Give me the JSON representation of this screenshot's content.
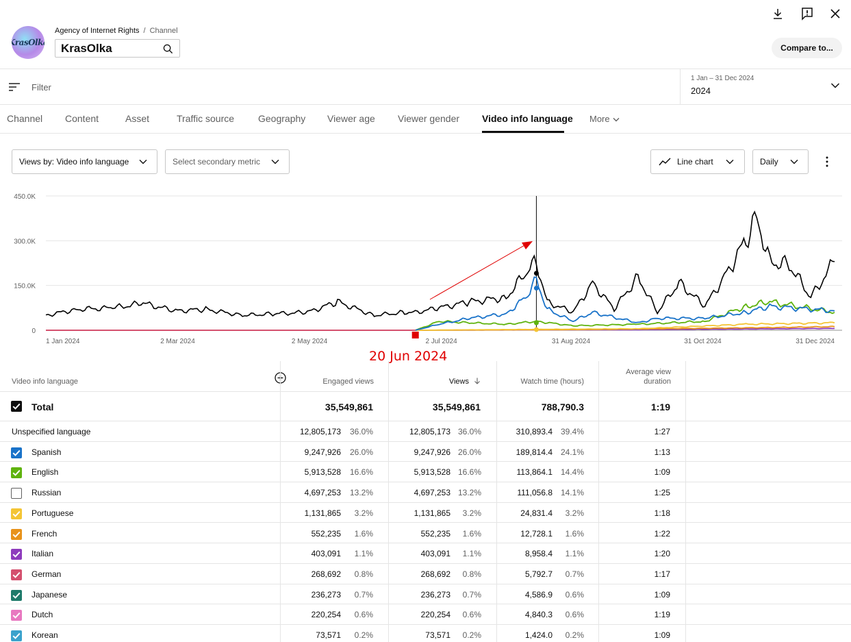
{
  "header": {
    "org": "Agency of Internet Rights",
    "separator": "/",
    "crumb_channel": "Channel",
    "channel_name": "KrasOlka",
    "avatar_text": "KrasOlka",
    "compare_label": "Compare to..."
  },
  "filter": {
    "placeholder": "Filter"
  },
  "date": {
    "range": "1 Jan – 31 Dec 2024",
    "year": "2024"
  },
  "tabs": [
    {
      "label": "Channel"
    },
    {
      "label": "Content"
    },
    {
      "label": "Asset"
    },
    {
      "label": "Traffic source"
    },
    {
      "label": "Geography"
    },
    {
      "label": "Viewer age"
    },
    {
      "label": "Viewer gender"
    },
    {
      "label": "Video info language"
    },
    {
      "label": "More"
    }
  ],
  "controls": {
    "views_by": "Views by: Video info language",
    "secondary": "Select secondary metric",
    "chart_type": "Line chart",
    "granularity": "Daily"
  },
  "annotation": {
    "date_label": "20 Jun 2024",
    "color": "#e00000"
  },
  "colors": {
    "total": "#000000",
    "spanish": "#1a73c9",
    "english": "#5fb30e",
    "russian": "#808080",
    "portuguese": "#f4c534",
    "french": "#e8921a",
    "italian": "#8e3bbd",
    "german": "#d4506e",
    "japanese": "#1e7a6a",
    "dutch": "#e878c0",
    "korean": "#3aa2cc"
  },
  "chart_data": {
    "type": "line",
    "xlabel": "",
    "ylabel": "",
    "ylim": [
      0,
      450000
    ],
    "yticks": [
      "450.0K",
      "300.0K",
      "150.0K",
      "0"
    ],
    "xticks": [
      "1 Jan 2024",
      "2 Mar 2024",
      "2 May 2024",
      "2 Jul 2024",
      "31 Aug 2024",
      "31 Oct 2024",
      "31 Dec 2024"
    ],
    "series": [
      {
        "name": "Total",
        "color": "#000000",
        "x": [
          "2024-01-01",
          "2024-01-15",
          "2024-02-01",
          "2024-02-15",
          "2024-03-01",
          "2024-03-15",
          "2024-04-01",
          "2024-04-15",
          "2024-05-01",
          "2024-05-15",
          "2024-06-01",
          "2024-06-15",
          "2024-06-20",
          "2024-07-01",
          "2024-07-15",
          "2024-08-01",
          "2024-08-10",
          "2024-08-15",
          "2024-08-20",
          "2024-09-01",
          "2024-09-10",
          "2024-09-20",
          "2024-10-01",
          "2024-10-10",
          "2024-10-20",
          "2024-11-01",
          "2024-11-10",
          "2024-11-20",
          "2024-11-25",
          "2024-12-01",
          "2024-12-10",
          "2024-12-20",
          "2024-12-31"
        ],
        "values": [
          50000,
          70000,
          75000,
          90000,
          65000,
          70000,
          50000,
          55000,
          60000,
          95000,
          50000,
          60000,
          60000,
          75000,
          95000,
          110000,
          190000,
          230000,
          95000,
          60000,
          160000,
          70000,
          180000,
          60000,
          160000,
          80000,
          180000,
          300000,
          380000,
          230000,
          220000,
          110000,
          230000
        ]
      },
      {
        "name": "Spanish",
        "color": "#1a73c9",
        "x": [
          "2024-06-20",
          "2024-07-01",
          "2024-07-15",
          "2024-08-01",
          "2024-08-10",
          "2024-08-15",
          "2024-08-20",
          "2024-09-01",
          "2024-09-10",
          "2024-10-01",
          "2024-10-10",
          "2024-11-01",
          "2024-11-20",
          "2024-12-01",
          "2024-12-31"
        ],
        "values": [
          0,
          20000,
          40000,
          55000,
          110000,
          170000,
          70000,
          30000,
          60000,
          25000,
          40000,
          40000,
          60000,
          80000,
          65000
        ]
      },
      {
        "name": "English",
        "color": "#5fb30e",
        "x": [
          "2024-06-20",
          "2024-07-01",
          "2024-07-15",
          "2024-08-01",
          "2024-08-15",
          "2024-09-01",
          "2024-10-01",
          "2024-11-01",
          "2024-11-20",
          "2024-12-01",
          "2024-12-31"
        ],
        "values": [
          0,
          30000,
          25000,
          20000,
          30000,
          15000,
          20000,
          30000,
          80000,
          95000,
          60000
        ]
      },
      {
        "name": "Portuguese",
        "color": "#f4c534",
        "x": [
          "2024-06-20",
          "2024-08-15",
          "2024-10-01",
          "2024-11-20",
          "2024-12-31"
        ],
        "values": [
          0,
          3000,
          5000,
          20000,
          25000
        ]
      },
      {
        "name": "French",
        "color": "#e8921a",
        "x": [
          "2024-06-20",
          "2024-09-01",
          "2024-11-20",
          "2024-12-31"
        ],
        "values": [
          0,
          2000,
          8000,
          12000
        ]
      },
      {
        "name": "Italian",
        "color": "#8e3bbd",
        "x": [
          "2024-06-20",
          "2024-10-01",
          "2024-12-31"
        ],
        "values": [
          0,
          2000,
          6000
        ]
      }
    ]
  },
  "table": {
    "headers": {
      "dimension": "Video info language",
      "engaged": "Engaged views",
      "views": "Views",
      "watch": "Watch time (hours)",
      "avg_line1": "Average view",
      "avg_line2": "duration"
    },
    "total": {
      "label": "Total",
      "engaged": "35,549,861",
      "views": "35,549,861",
      "watch": "788,790.3",
      "avg": "1:19"
    },
    "rows": [
      {
        "label": "Unspecified language",
        "engaged": "12,805,173",
        "engaged_pct": "36.0%",
        "views": "12,805,173",
        "views_pct": "36.0%",
        "watch": "310,893.4",
        "watch_pct": "39.4%",
        "avg": "1:27",
        "checkbox": "none",
        "color": ""
      },
      {
        "label": "Spanish",
        "engaged": "9,247,926",
        "engaged_pct": "26.0%",
        "views": "9,247,926",
        "views_pct": "26.0%",
        "watch": "189,814.4",
        "watch_pct": "24.1%",
        "avg": "1:13",
        "checkbox": "checked",
        "color": "#1a73c9"
      },
      {
        "label": "English",
        "engaged": "5,913,528",
        "engaged_pct": "16.6%",
        "views": "5,913,528",
        "views_pct": "16.6%",
        "watch": "113,864.1",
        "watch_pct": "14.4%",
        "avg": "1:09",
        "checkbox": "checked",
        "color": "#5fb30e"
      },
      {
        "label": "Russian",
        "engaged": "4,697,253",
        "engaged_pct": "13.2%",
        "views": "4,697,253",
        "views_pct": "13.2%",
        "watch": "111,056.8",
        "watch_pct": "14.1%",
        "avg": "1:25",
        "checkbox": "empty",
        "color": ""
      },
      {
        "label": "Portuguese",
        "engaged": "1,131,865",
        "engaged_pct": "3.2%",
        "views": "1,131,865",
        "views_pct": "3.2%",
        "watch": "24,831.4",
        "watch_pct": "3.2%",
        "avg": "1:18",
        "checkbox": "checked",
        "color": "#f4c534"
      },
      {
        "label": "French",
        "engaged": "552,235",
        "engaged_pct": "1.6%",
        "views": "552,235",
        "views_pct": "1.6%",
        "watch": "12,728.1",
        "watch_pct": "1.6%",
        "avg": "1:22",
        "checkbox": "checked",
        "color": "#e8921a"
      },
      {
        "label": "Italian",
        "engaged": "403,091",
        "engaged_pct": "1.1%",
        "views": "403,091",
        "views_pct": "1.1%",
        "watch": "8,958.4",
        "watch_pct": "1.1%",
        "avg": "1:20",
        "checkbox": "checked",
        "color": "#8e3bbd"
      },
      {
        "label": "German",
        "engaged": "268,692",
        "engaged_pct": "0.8%",
        "views": "268,692",
        "views_pct": "0.8%",
        "watch": "5,792.7",
        "watch_pct": "0.7%",
        "avg": "1:17",
        "checkbox": "checked",
        "color": "#d4506e"
      },
      {
        "label": "Japanese",
        "engaged": "236,273",
        "engaged_pct": "0.7%",
        "views": "236,273",
        "views_pct": "0.7%",
        "watch": "4,586.9",
        "watch_pct": "0.6%",
        "avg": "1:09",
        "checkbox": "checked",
        "color": "#1e7a6a"
      },
      {
        "label": "Dutch",
        "engaged": "220,254",
        "engaged_pct": "0.6%",
        "views": "220,254",
        "views_pct": "0.6%",
        "watch": "4,840.3",
        "watch_pct": "0.6%",
        "avg": "1:19",
        "checkbox": "checked",
        "color": "#e878c0"
      },
      {
        "label": "Korean",
        "engaged": "73,571",
        "engaged_pct": "0.2%",
        "views": "73,571",
        "views_pct": "0.2%",
        "watch": "1,424.0",
        "watch_pct": "0.2%",
        "avg": "1:09",
        "checkbox": "checked",
        "color": "#3aa2cc"
      }
    ]
  },
  "icons": [
    "download-icon",
    "feedback-icon",
    "close-icon",
    "search-icon",
    "filter-icon",
    "chevron-down-icon",
    "line-chart-icon",
    "more-vert-icon",
    "add-column-icon",
    "sort-arrow-icon",
    "checkbox-icon"
  ]
}
